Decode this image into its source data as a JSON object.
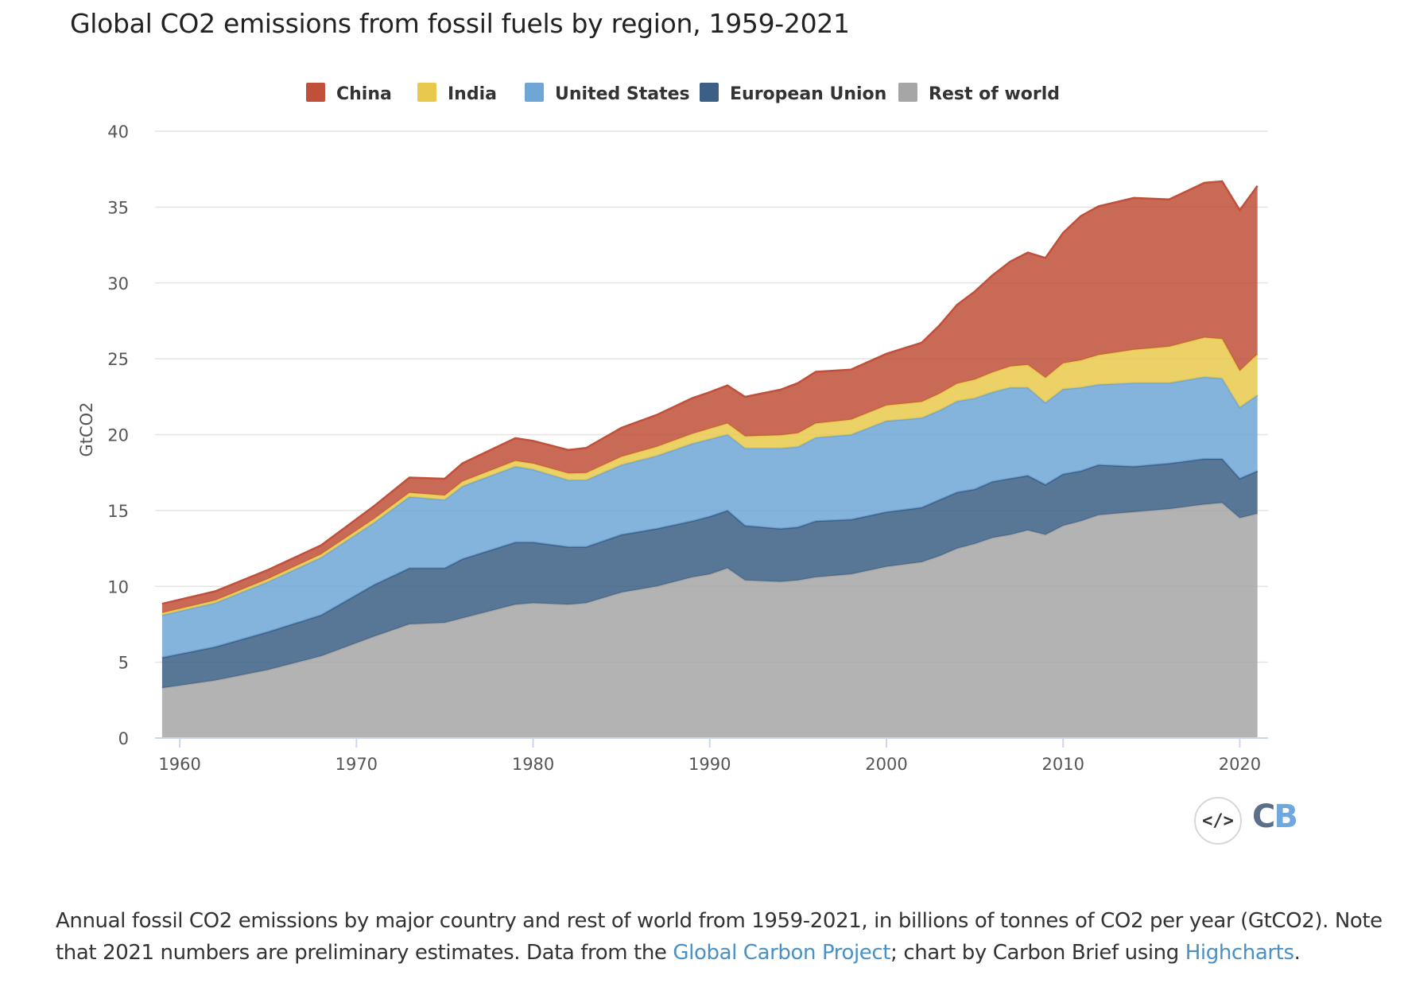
{
  "header": {
    "title": "Global CO2 emissions from fossil fuels by region, 1959-2021"
  },
  "chart_data": {
    "type": "area",
    "stacked": true,
    "title": "Global CO2 emissions from fossil fuels by region, 1959-2021",
    "ylabel": "GtCO2",
    "xlabel": "",
    "ylim": [
      0,
      40
    ],
    "yticks": [
      0,
      5,
      10,
      15,
      20,
      25,
      30,
      35,
      40
    ],
    "xticks": [
      1960,
      1970,
      1980,
      1990,
      2000,
      2010,
      2020
    ],
    "legend_position": "top-center",
    "grid": true,
    "x": [
      1959,
      1962,
      1965,
      1968,
      1971,
      1973,
      1975,
      1976,
      1979,
      1980,
      1982,
      1983,
      1985,
      1987,
      1989,
      1990,
      1991,
      1992,
      1994,
      1995,
      1996,
      1998,
      2000,
      2002,
      2003,
      2004,
      2005,
      2006,
      2007,
      2008,
      2009,
      2010,
      2011,
      2012,
      2014,
      2016,
      2018,
      2019,
      2020,
      2021
    ],
    "series": [
      {
        "name": "Rest of world",
        "color": "#a6a6a6",
        "values": [
          3.3,
          3.8,
          4.5,
          5.4,
          6.7,
          7.5,
          7.6,
          7.9,
          8.8,
          8.9,
          8.8,
          8.9,
          9.6,
          10.0,
          10.6,
          10.8,
          11.2,
          10.4,
          10.3,
          10.4,
          10.6,
          10.8,
          11.3,
          11.6,
          12.0,
          12.5,
          12.8,
          13.2,
          13.4,
          13.7,
          13.4,
          14.0,
          14.3,
          14.7,
          14.9,
          15.1,
          15.4,
          15.5,
          14.5,
          14.8
        ]
      },
      {
        "name": "European Union",
        "color": "#3b5f85",
        "values": [
          2.0,
          2.2,
          2.5,
          2.7,
          3.4,
          3.7,
          3.6,
          3.9,
          4.1,
          4.0,
          3.8,
          3.7,
          3.8,
          3.8,
          3.7,
          3.8,
          3.8,
          3.6,
          3.5,
          3.5,
          3.7,
          3.6,
          3.6,
          3.6,
          3.7,
          3.7,
          3.6,
          3.7,
          3.7,
          3.6,
          3.3,
          3.4,
          3.3,
          3.3,
          3.0,
          3.0,
          3.0,
          2.9,
          2.6,
          2.8
        ]
      },
      {
        "name": "United States",
        "color": "#6fa6d6",
        "values": [
          2.8,
          2.9,
          3.3,
          3.8,
          4.1,
          4.7,
          4.5,
          4.8,
          5.0,
          4.8,
          4.4,
          4.4,
          4.6,
          4.8,
          5.1,
          5.1,
          5.0,
          5.1,
          5.3,
          5.3,
          5.5,
          5.6,
          6.0,
          5.9,
          5.9,
          6.0,
          6.0,
          5.9,
          6.0,
          5.8,
          5.4,
          5.6,
          5.5,
          5.3,
          5.5,
          5.3,
          5.4,
          5.3,
          4.7,
          5.0
        ]
      },
      {
        "name": "India",
        "color": "#e8c94b",
        "values": [
          0.15,
          0.17,
          0.19,
          0.21,
          0.25,
          0.27,
          0.29,
          0.31,
          0.37,
          0.39,
          0.44,
          0.47,
          0.55,
          0.6,
          0.65,
          0.7,
          0.74,
          0.79,
          0.86,
          0.9,
          0.94,
          0.99,
          1.03,
          1.06,
          1.1,
          1.16,
          1.23,
          1.3,
          1.4,
          1.5,
          1.65,
          1.7,
          1.8,
          1.95,
          2.2,
          2.4,
          2.6,
          2.6,
          2.4,
          2.7
        ]
      },
      {
        "name": "China",
        "color": "#c0503a",
        "values": [
          0.6,
          0.6,
          0.6,
          0.6,
          0.85,
          1.0,
          1.1,
          1.2,
          1.5,
          1.5,
          1.55,
          1.65,
          1.9,
          2.1,
          2.35,
          2.4,
          2.5,
          2.6,
          3.0,
          3.3,
          3.4,
          3.3,
          3.4,
          3.9,
          4.5,
          5.2,
          5.8,
          6.4,
          6.9,
          7.4,
          7.9,
          8.6,
          9.5,
          9.8,
          10.0,
          9.7,
          10.2,
          10.4,
          10.6,
          11.1
        ]
      }
    ]
  },
  "branding": {
    "embed_icon": "code-icon",
    "embed_glyph": "</>",
    "logo_c": "C",
    "logo_b": "B"
  },
  "caption": {
    "text1": "Annual fossil CO2 emissions by major country and rest of world from 1959-2021, in billions of tonnes of CO2 per year (GtCO2). Note that 2021 numbers are preliminary estimates. Data from the ",
    "link1": "Global Carbon Project",
    "text2": "; chart by Carbon Brief using ",
    "link2": "Highcharts",
    "text3": "."
  }
}
